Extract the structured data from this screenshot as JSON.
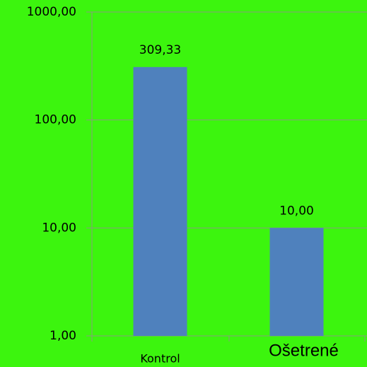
{
  "chart_data": {
    "type": "bar",
    "categories": [
      "Kontrol",
      "Ošetrené"
    ],
    "values": [
      309.33,
      10
    ],
    "value_labels": [
      "309,33",
      "10,00"
    ],
    "color": "#4f81bd",
    "log_scale": true,
    "ylim": [
      1,
      1000
    ],
    "yticks": [
      {
        "value": 1,
        "label": "1,00"
      },
      {
        "value": 10,
        "label": "10,00"
      },
      {
        "value": 100,
        "label": "100,00"
      },
      {
        "value": 1000,
        "label": "1000,00"
      }
    ],
    "grid": true
  }
}
